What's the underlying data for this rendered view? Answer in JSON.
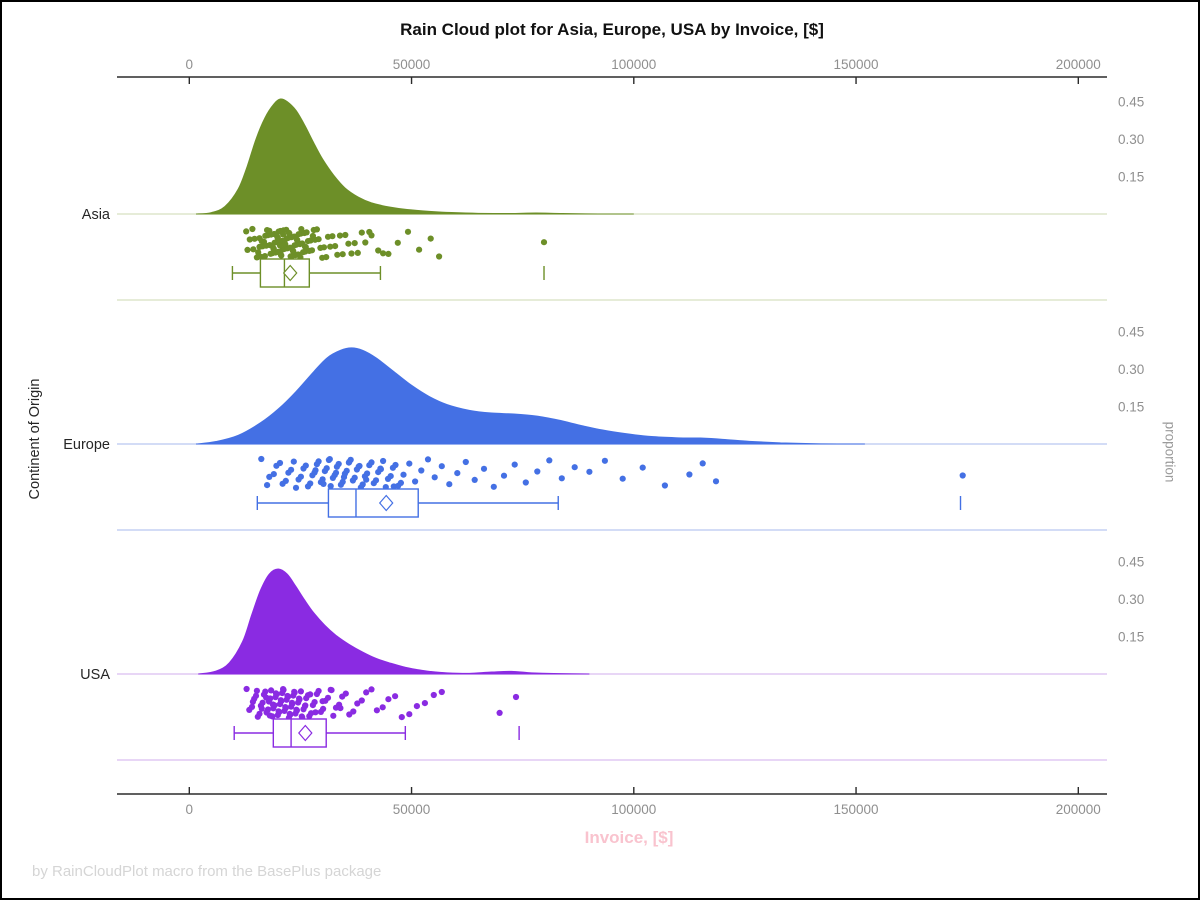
{
  "title": "Rain Cloud plot for Asia, Europe, USA by Invoice, [$]",
  "footer": "by RainCloudPlot macro from the BasePlus package",
  "colors": {
    "axis_line": "#2b2b2b",
    "tick_label": "#8f8f8f",
    "category_label": "#262626",
    "x_label": "#f9c3ce",
    "footer_text": "#d5d5d5",
    "proportion_label": "#9a9a9a"
  },
  "axes": {
    "x_label": "Invoice, [$]",
    "y_left_label": "Continent of Origin",
    "y_right_label": "proportion",
    "x_tick_values": [
      0,
      50000,
      100000,
      150000,
      200000
    ],
    "x_tick_labels": [
      "0",
      "50000",
      "100000",
      "150000",
      "200000"
    ],
    "proportion_tick_values": [
      0.45,
      0.3,
      0.15
    ],
    "proportion_tick_labels": [
      "0.45",
      "0.30",
      "0.15"
    ]
  },
  "chart_data": {
    "type": "raincloud",
    "title": "Rain Cloud plot for Asia, Europe, USA by Invoice, [$]",
    "xlabel": "Invoice, [$]",
    "ylabel_left": "Continent of Origin",
    "ylabel_right": "proportion",
    "x_range": [
      0,
      200000
    ],
    "proportion_ticks": [
      0.15,
      0.3,
      0.45
    ],
    "groups": [
      {
        "label": "Asia",
        "color": "#6d8f28",
        "light_color": "#d8e1c0",
        "box": {
          "whisker_low": 9700,
          "q1": 16000,
          "median": 21400,
          "mean": 22700,
          "q3": 27000,
          "whisker_high": 43000,
          "outliers": [
            79800
          ]
        },
        "density": [
          [
            1500,
            0
          ],
          [
            5000,
            0.006
          ],
          [
            8000,
            0.03
          ],
          [
            11000,
            0.1
          ],
          [
            13000,
            0.19
          ],
          [
            15000,
            0.3
          ],
          [
            17000,
            0.385
          ],
          [
            19000,
            0.44
          ],
          [
            20500,
            0.46
          ],
          [
            22000,
            0.45
          ],
          [
            24000,
            0.415
          ],
          [
            26000,
            0.355
          ],
          [
            28000,
            0.285
          ],
          [
            30000,
            0.22
          ],
          [
            32500,
            0.155
          ],
          [
            35000,
            0.105
          ],
          [
            38000,
            0.068
          ],
          [
            41000,
            0.045
          ],
          [
            45000,
            0.028
          ],
          [
            49000,
            0.018
          ],
          [
            54000,
            0.011
          ],
          [
            59000,
            0.006
          ],
          [
            65000,
            0.003
          ],
          [
            72000,
            0.002
          ],
          [
            78000,
            0.004
          ],
          [
            84000,
            0.002
          ],
          [
            92000,
            0.0005
          ],
          [
            100000,
            0
          ]
        ],
        "points": [
          14200,
          15800,
          17100,
          18300,
          19200,
          20100,
          21000,
          21900,
          22800,
          23700,
          24600,
          25600,
          26700,
          28000,
          29500,
          31200,
          33300,
          35800,
          38800,
          42500,
          13600,
          15200,
          16500,
          17700,
          18700,
          19600,
          20500,
          21400,
          22300,
          23200,
          24100,
          25100,
          26100,
          27300,
          28700,
          30300,
          32200,
          34500,
          37200,
          40500,
          13100,
          14700,
          16100,
          17300,
          18400,
          19400,
          20300,
          21200,
          22100,
          23000,
          23900,
          24900,
          25900,
          27000,
          28300,
          29900,
          31700,
          33900,
          36500,
          39600,
          12800,
          14400,
          15800,
          17000,
          18100,
          19100,
          20000,
          20900,
          21800,
          22700,
          23600,
          24500,
          25400,
          26400,
          27600,
          29100,
          30800,
          32800,
          35100,
          37900,
          16800,
          18000,
          19000,
          19900,
          20700,
          21600,
          22500,
          23400,
          24300,
          25200,
          26200,
          27800,
          44800,
          46900,
          49200,
          51700,
          54300,
          56200,
          20400,
          21100,
          15500,
          16300,
          17500,
          18900,
          19800,
          20600,
          21500,
          22400,
          23300,
          24200,
          25000,
          26000,
          41000,
          43600,
          79800
        ]
      },
      {
        "label": "Europe",
        "color": "#4470e4",
        "light_color": "#b9c8f0",
        "box": {
          "whisker_low": 15300,
          "q1": 31300,
          "median": 37500,
          "mean": 44300,
          "q3": 51500,
          "whisker_high": 83000,
          "outliers": [
            173500
          ]
        },
        "density": [
          [
            1500,
            0
          ],
          [
            6000,
            0.01
          ],
          [
            11000,
            0.035
          ],
          [
            16000,
            0.085
          ],
          [
            20000,
            0.14
          ],
          [
            24000,
            0.21
          ],
          [
            28000,
            0.29
          ],
          [
            31000,
            0.345
          ],
          [
            34000,
            0.375
          ],
          [
            36500,
            0.385
          ],
          [
            39000,
            0.375
          ],
          [
            42000,
            0.345
          ],
          [
            46000,
            0.29
          ],
          [
            50000,
            0.235
          ],
          [
            54000,
            0.19
          ],
          [
            58000,
            0.158
          ],
          [
            63000,
            0.135
          ],
          [
            68000,
            0.124
          ],
          [
            73000,
            0.12
          ],
          [
            78000,
            0.112
          ],
          [
            83000,
            0.096
          ],
          [
            88000,
            0.075
          ],
          [
            93000,
            0.056
          ],
          [
            98000,
            0.042
          ],
          [
            104000,
            0.03
          ],
          [
            110000,
            0.025
          ],
          [
            115000,
            0.024
          ],
          [
            120000,
            0.019
          ],
          [
            126000,
            0.011
          ],
          [
            133000,
            0.005
          ],
          [
            142000,
            0.001
          ],
          [
            152000,
            0
          ]
        ],
        "points": [
          16200,
          18000,
          19600,
          21000,
          22300,
          23500,
          24600,
          25700,
          26700,
          27700,
          28700,
          29600,
          30500,
          31400,
          32300,
          33200,
          34100,
          35000,
          35900,
          36800,
          37700,
          38600,
          39500,
          40500,
          41500,
          42500,
          43600,
          44700,
          45800,
          47000,
          48200,
          49500,
          50800,
          52200,
          53700,
          55200,
          56800,
          58500,
          60300,
          62200,
          64200,
          66300,
          68500,
          70800,
          73200,
          75700,
          78300,
          81000,
          83800,
          86700,
          17500,
          19000,
          20400,
          21700,
          22900,
          24000,
          25100,
          26200,
          27200,
          28200,
          29100,
          30000,
          30900,
          31800,
          32700,
          33600,
          34500,
          35400,
          36300,
          37200,
          38100,
          39000,
          40000,
          41000,
          42000,
          43100,
          44200,
          45300,
          46400,
          47600,
          90000,
          93500,
          97500,
          102000,
          107000,
          112500,
          115500,
          118500,
          28400,
          31600,
          34800,
          38300,
          30200,
          33000,
          36000,
          39800,
          43000,
          46000,
          174000
        ]
      },
      {
        "label": "USA",
        "color": "#8a2be2",
        "light_color": "#d9bdf0",
        "box": {
          "whisker_low": 10100,
          "q1": 18900,
          "median": 22900,
          "mean": 26100,
          "q3": 30800,
          "whisker_high": 48600,
          "outliers": [
            74200
          ]
        },
        "density": [
          [
            2000,
            0
          ],
          [
            6000,
            0.012
          ],
          [
            9000,
            0.045
          ],
          [
            12000,
            0.13
          ],
          [
            14000,
            0.235
          ],
          [
            16000,
            0.335
          ],
          [
            18000,
            0.4
          ],
          [
            20000,
            0.42
          ],
          [
            22000,
            0.4
          ],
          [
            24000,
            0.35
          ],
          [
            26000,
            0.295
          ],
          [
            28000,
            0.245
          ],
          [
            30500,
            0.195
          ],
          [
            33000,
            0.155
          ],
          [
            36000,
            0.118
          ],
          [
            39000,
            0.088
          ],
          [
            42000,
            0.063
          ],
          [
            45000,
            0.045
          ],
          [
            48000,
            0.03
          ],
          [
            51000,
            0.019
          ],
          [
            54000,
            0.011
          ],
          [
            58000,
            0.005
          ],
          [
            63000,
            0.003
          ],
          [
            68000,
            0.008
          ],
          [
            72500,
            0.011
          ],
          [
            77000,
            0.005
          ],
          [
            82000,
            0.002
          ],
          [
            90000,
            0
          ]
        ],
        "points": [
          12900,
          14100,
          15000,
          15800,
          16500,
          17100,
          17700,
          18200,
          18700,
          19200,
          19700,
          20200,
          20700,
          21200,
          21700,
          22200,
          22700,
          23200,
          23700,
          24200,
          24800,
          25400,
          26000,
          26700,
          27400,
          28200,
          29100,
          30100,
          31200,
          32400,
          33700,
          35200,
          36900,
          38800,
          41000,
          43500,
          46300,
          49500,
          53000,
          56800,
          13500,
          14600,
          15400,
          16100,
          16800,
          17400,
          17900,
          18400,
          18900,
          19400,
          19900,
          20400,
          20900,
          21400,
          21900,
          22400,
          22900,
          23400,
          23900,
          24500,
          25100,
          25700,
          26300,
          27000,
          27800,
          28700,
          29600,
          30600,
          31800,
          33000,
          34400,
          36000,
          37800,
          39800,
          42200,
          44800,
          47800,
          51200,
          55000,
          69800,
          14300,
          15200,
          16300,
          17300,
          18100,
          18800,
          19500,
          20100,
          20600,
          21100,
          21600,
          22100,
          22600,
          23100,
          23600,
          24100,
          24700,
          25300,
          26100,
          27200,
          28400,
          30000,
          32000,
          34000,
          73500
        ]
      }
    ]
  }
}
